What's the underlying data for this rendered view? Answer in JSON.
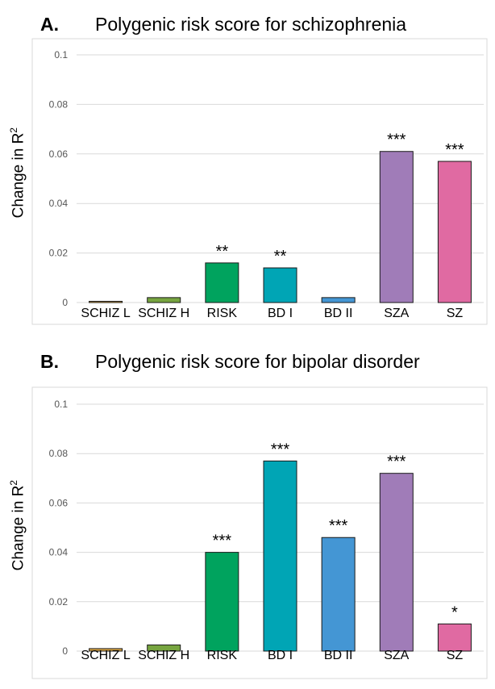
{
  "chart_data": [
    {
      "type": "bar",
      "panel_label": "A.",
      "title": "Polygenic risk score for schizophrenia",
      "ylabel_main": "Change in R",
      "ylabel_sup": "2",
      "xlabel": "",
      "ylim": [
        0,
        0.1
      ],
      "yticks": [
        0,
        0.02,
        0.04,
        0.06,
        0.08,
        0.1
      ],
      "ytick_labels": [
        "0",
        "0.02",
        "0.04",
        "0.06",
        "0.08",
        "0.1"
      ],
      "grid": true,
      "categories": [
        "SCHIZ L",
        "SCHIZ H",
        "RISK",
        "BD I",
        "BD II",
        "SZA",
        "SZ"
      ],
      "values": [
        0.0005,
        0.002,
        0.016,
        0.014,
        0.002,
        0.061,
        0.057
      ],
      "significance": [
        "",
        "",
        "**",
        "**",
        "",
        "***",
        "***"
      ],
      "colors": [
        "#d9a441",
        "#77a540",
        "#00a35e",
        "#00a5b5",
        "#4496d4",
        "#a07cb8",
        "#e06aa2"
      ]
    },
    {
      "type": "bar",
      "panel_label": "B.",
      "title": "Polygenic risk score for bipolar disorder",
      "ylabel_main": "Change in R",
      "ylabel_sup": "2",
      "xlabel": "",
      "ylim": [
        0,
        0.1
      ],
      "yticks": [
        0,
        0.02,
        0.04,
        0.06,
        0.08,
        0.1
      ],
      "ytick_labels": [
        "0",
        "0.02",
        "0.04",
        "0.06",
        "0.08",
        "0.1"
      ],
      "grid": true,
      "categories": [
        "SCHIZ L",
        "SCHIZ H",
        "RISK",
        "BD I",
        "BD II",
        "SZA",
        "SZ"
      ],
      "values": [
        0.001,
        0.0025,
        0.04,
        0.077,
        0.046,
        0.072,
        0.011
      ],
      "significance": [
        "",
        "",
        "***",
        "***",
        "***",
        "***",
        "*"
      ],
      "colors": [
        "#d9a441",
        "#77a540",
        "#00a35e",
        "#00a5b5",
        "#4496d4",
        "#a07cb8",
        "#e06aa2"
      ]
    }
  ],
  "colors": {
    "grid": "#d9d9d9",
    "frame": "#d9d9d9",
    "bar_outline": "#1a1a1a",
    "tick_text": "#555555"
  }
}
